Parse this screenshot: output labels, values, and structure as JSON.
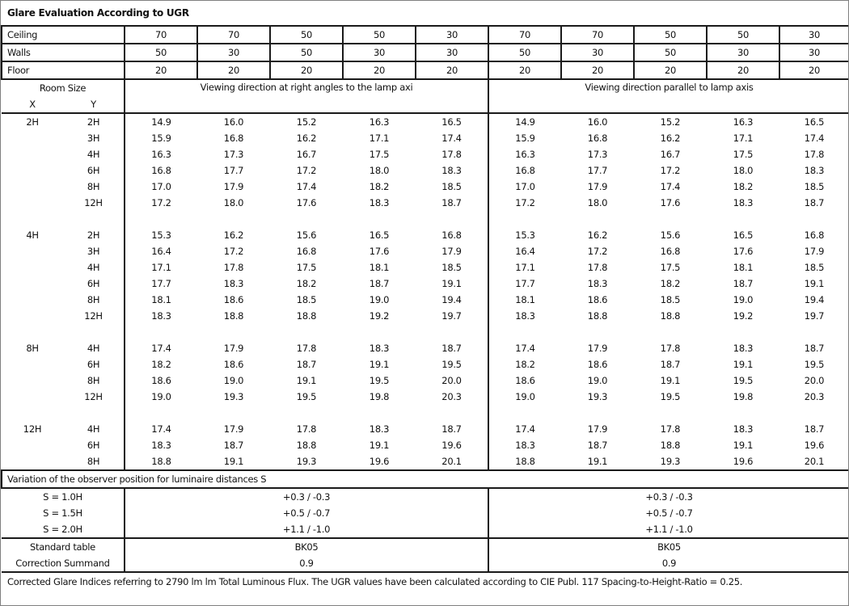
{
  "title": "Glare Evaluation According to UGR",
  "reflectances": [
    {
      "label": "Ceiling",
      "values": [
        "70",
        "70",
        "50",
        "50",
        "30",
        "70",
        "70",
        "50",
        "50",
        "30"
      ]
    },
    {
      "label": "Walls",
      "values": [
        "50",
        "30",
        "50",
        "30",
        "30",
        "50",
        "30",
        "50",
        "30",
        "30"
      ]
    },
    {
      "label": "Floor",
      "values": [
        "20",
        "20",
        "20",
        "20",
        "20",
        "20",
        "20",
        "20",
        "20",
        "20"
      ]
    }
  ],
  "room_size_label": "Room Size",
  "x_label": "X",
  "y_label": "Y",
  "direction_right": "Viewing direction at right angles to the lamp axi",
  "direction_parallel": "Viewing direction parallel to lamp axis",
  "groups": [
    {
      "x": "2H",
      "rows": [
        {
          "y": "2H",
          "right": [
            "14.9",
            "16.0",
            "15.2",
            "16.3",
            "16.5"
          ],
          "parallel": [
            "14.9",
            "16.0",
            "15.2",
            "16.3",
            "16.5"
          ]
        },
        {
          "y": "3H",
          "right": [
            "15.9",
            "16.8",
            "16.2",
            "17.1",
            "17.4"
          ],
          "parallel": [
            "15.9",
            "16.8",
            "16.2",
            "17.1",
            "17.4"
          ]
        },
        {
          "y": "4H",
          "right": [
            "16.3",
            "17.3",
            "16.7",
            "17.5",
            "17.8"
          ],
          "parallel": [
            "16.3",
            "17.3",
            "16.7",
            "17.5",
            "17.8"
          ]
        },
        {
          "y": "6H",
          "right": [
            "16.8",
            "17.7",
            "17.2",
            "18.0",
            "18.3"
          ],
          "parallel": [
            "16.8",
            "17.7",
            "17.2",
            "18.0",
            "18.3"
          ]
        },
        {
          "y": "8H",
          "right": [
            "17.0",
            "17.9",
            "17.4",
            "18.2",
            "18.5"
          ],
          "parallel": [
            "17.0",
            "17.9",
            "17.4",
            "18.2",
            "18.5"
          ]
        },
        {
          "y": "12H",
          "right": [
            "17.2",
            "18.0",
            "17.6",
            "18.3",
            "18.7"
          ],
          "parallel": [
            "17.2",
            "18.0",
            "17.6",
            "18.3",
            "18.7"
          ]
        }
      ]
    },
    {
      "x": "4H",
      "rows": [
        {
          "y": "2H",
          "right": [
            "15.3",
            "16.2",
            "15.6",
            "16.5",
            "16.8"
          ],
          "parallel": [
            "15.3",
            "16.2",
            "15.6",
            "16.5",
            "16.8"
          ]
        },
        {
          "y": "3H",
          "right": [
            "16.4",
            "17.2",
            "16.8",
            "17.6",
            "17.9"
          ],
          "parallel": [
            "16.4",
            "17.2",
            "16.8",
            "17.6",
            "17.9"
          ]
        },
        {
          "y": "4H",
          "right": [
            "17.1",
            "17.8",
            "17.5",
            "18.1",
            "18.5"
          ],
          "parallel": [
            "17.1",
            "17.8",
            "17.5",
            "18.1",
            "18.5"
          ]
        },
        {
          "y": "6H",
          "right": [
            "17.7",
            "18.3",
            "18.2",
            "18.7",
            "19.1"
          ],
          "parallel": [
            "17.7",
            "18.3",
            "18.2",
            "18.7",
            "19.1"
          ]
        },
        {
          "y": "8H",
          "right": [
            "18.1",
            "18.6",
            "18.5",
            "19.0",
            "19.4"
          ],
          "parallel": [
            "18.1",
            "18.6",
            "18.5",
            "19.0",
            "19.4"
          ]
        },
        {
          "y": "12H",
          "right": [
            "18.3",
            "18.8",
            "18.8",
            "19.2",
            "19.7"
          ],
          "parallel": [
            "18.3",
            "18.8",
            "18.8",
            "19.2",
            "19.7"
          ]
        }
      ]
    },
    {
      "x": "8H",
      "rows": [
        {
          "y": "4H",
          "right": [
            "17.4",
            "17.9",
            "17.8",
            "18.3",
            "18.7"
          ],
          "parallel": [
            "17.4",
            "17.9",
            "17.8",
            "18.3",
            "18.7"
          ]
        },
        {
          "y": "6H",
          "right": [
            "18.2",
            "18.6",
            "18.7",
            "19.1",
            "19.5"
          ],
          "parallel": [
            "18.2",
            "18.6",
            "18.7",
            "19.1",
            "19.5"
          ]
        },
        {
          "y": "8H",
          "right": [
            "18.6",
            "19.0",
            "19.1",
            "19.5",
            "20.0"
          ],
          "parallel": [
            "18.6",
            "19.0",
            "19.1",
            "19.5",
            "20.0"
          ]
        },
        {
          "y": "12H",
          "right": [
            "19.0",
            "19.3",
            "19.5",
            "19.8",
            "20.3"
          ],
          "parallel": [
            "19.0",
            "19.3",
            "19.5",
            "19.8",
            "20.3"
          ]
        }
      ]
    },
    {
      "x": "12H",
      "rows": [
        {
          "y": "4H",
          "right": [
            "17.4",
            "17.9",
            "17.8",
            "18.3",
            "18.7"
          ],
          "parallel": [
            "17.4",
            "17.9",
            "17.8",
            "18.3",
            "18.7"
          ]
        },
        {
          "y": "6H",
          "right": [
            "18.3",
            "18.7",
            "18.8",
            "19.1",
            "19.6"
          ],
          "parallel": [
            "18.3",
            "18.7",
            "18.8",
            "19.1",
            "19.6"
          ]
        },
        {
          "y": "8H",
          "right": [
            "18.8",
            "19.1",
            "19.3",
            "19.6",
            "20.1"
          ],
          "parallel": [
            "18.8",
            "19.1",
            "19.3",
            "19.6",
            "20.1"
          ]
        }
      ]
    }
  ],
  "variation_label": "Variation of the observer position for luminaire distances S",
  "variations": [
    {
      "label": "S = 1.0H",
      "right": "+0.3 / -0.3",
      "parallel": "+0.3 / -0.3"
    },
    {
      "label": "S = 1.5H",
      "right": "+0.5 / -0.7",
      "parallel": "+0.5 / -0.7"
    },
    {
      "label": "S = 2.0H",
      "right": "+1.1 / -1.0",
      "parallel": "+1.1 / -1.0"
    }
  ],
  "standard_table": {
    "label": "Standard table",
    "right": "BK05",
    "parallel": "BK05"
  },
  "correction": {
    "label": "Correction Summand",
    "right": "0.9",
    "parallel": "0.9"
  },
  "footer": "Corrected Glare Indices referring to 2790 lm lm Total Luminous Flux. The UGR values have been calculated according to CIE Publ. 117    Spacing-to-Height-Ratio = 0.25."
}
